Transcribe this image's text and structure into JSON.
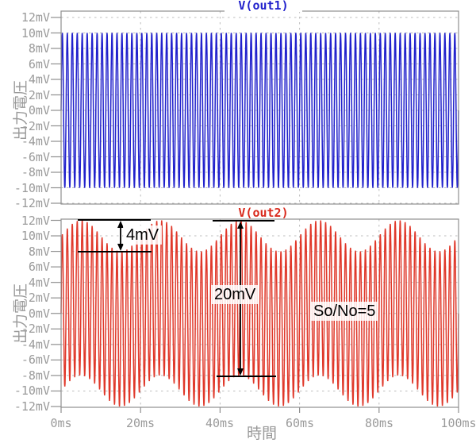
{
  "colors": {
    "trace1_blue": "#2121cc",
    "trace2_red": "#e0382a",
    "grid_dash": "#bdbdbd",
    "border_gray": "#8f8f8f",
    "axis_text_gray": "#9a9a9a",
    "annotation_black": "#000000"
  },
  "xaxis": {
    "label": "時間",
    "tick_labels": [
      "0ms",
      "20ms",
      "40ms",
      "60ms",
      "80ms",
      "100ms"
    ]
  },
  "yaxis": {
    "label": "出力電圧",
    "tick_labels": [
      "12mV",
      "10mV",
      "8mV",
      "6mV",
      "4mV",
      "2mV",
      "0mV",
      "-2mV",
      "-4mV",
      "-6mV",
      "-8mV",
      "-10mV",
      "-12mV"
    ]
  },
  "annotations": {
    "small_delta": {
      "text": "4mV",
      "from_mV": 12,
      "to_mV": 8
    },
    "large_delta": {
      "text": "20mV",
      "from_mV": 12,
      "to_mV": -8
    },
    "snr": {
      "text": "So/No=5"
    }
  },
  "chart_data": [
    {
      "type": "line",
      "title": "V(out1)",
      "ylabel": "出力電圧",
      "series": [
        {
          "name": "V(out1)",
          "color": "#2121cc",
          "waveform": {
            "kind": "sine",
            "carrier_amplitude_mV": 10,
            "carrier_cycles_shown": 80,
            "interference_amplitude_mV": 0,
            "interference_period_ms": 20
          }
        }
      ],
      "xlim_ms": [
        0,
        100
      ],
      "ylim_mV": [
        -12,
        12
      ],
      "ytick_step_mV": 2,
      "xtick_step_ms": 20,
      "grid": true,
      "legend_position": "top-center-title"
    },
    {
      "type": "line",
      "title": "V(out2)",
      "ylabel": "出力電圧",
      "xlabel": "時間",
      "series": [
        {
          "name": "V(out2)",
          "color": "#e0382a",
          "waveform": {
            "kind": "sine_plus_interference",
            "carrier_amplitude_mV": 10,
            "carrier_cycles_shown": 80,
            "interference_amplitude_mV": 2,
            "interference_period_ms": 20
          },
          "envelope_mV": {
            "upper_max": 12,
            "upper_min": 8,
            "lower_max": -8,
            "lower_min": -12
          }
        }
      ],
      "xlim_ms": [
        0,
        100
      ],
      "ylim_mV": [
        -12,
        12
      ],
      "ytick_step_mV": 2,
      "xtick_step_ms": 20,
      "grid": true,
      "measured_deltas": [
        {
          "label": "4mV",
          "between_mV": [
            12,
            8
          ],
          "at_ms_range": [
            4,
            23
          ]
        },
        {
          "label": "20mV",
          "between_mV": [
            12,
            -8
          ],
          "at_ms": 45
        }
      ],
      "note": "So/No=5"
    }
  ]
}
